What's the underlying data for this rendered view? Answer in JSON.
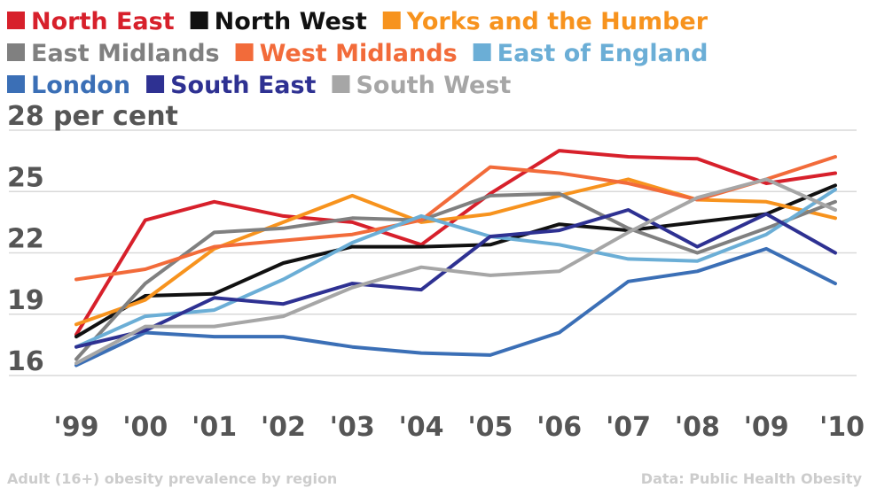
{
  "chart_data": {
    "type": "line",
    "ylabel": "per cent",
    "caption": "Adult (16+) obesity prevalence by region",
    "source": "Data: Public Health Obesity",
    "x": [
      "'99",
      "'00",
      "'01",
      "'02",
      "'03",
      "'04",
      "'05",
      "'06",
      "'07",
      "'08",
      "'09",
      "'10"
    ],
    "yticks": [
      16,
      19,
      22,
      25,
      28
    ],
    "ylim": [
      16,
      28
    ],
    "grid": true,
    "legend_position": "top",
    "series": [
      {
        "name": "North East",
        "color": "#d7202b",
        "values": [
          18.0,
          23.6,
          24.5,
          23.8,
          23.5,
          22.4,
          24.9,
          27.0,
          26.7,
          26.6,
          25.4,
          25.9
        ]
      },
      {
        "name": "North West",
        "color": "#111111",
        "values": [
          17.9,
          19.9,
          20.0,
          21.5,
          22.3,
          22.3,
          22.4,
          23.4,
          23.1,
          23.5,
          23.9,
          25.3
        ]
      },
      {
        "name": "Yorks and the Humber",
        "color": "#f7931e",
        "values": [
          18.5,
          19.7,
          22.2,
          23.5,
          24.8,
          23.5,
          23.9,
          24.8,
          25.6,
          24.6,
          24.5,
          23.7
        ]
      },
      {
        "name": "East Midlands",
        "color": "#808080",
        "values": [
          16.8,
          20.5,
          23.0,
          23.2,
          23.7,
          23.6,
          24.8,
          24.9,
          23.2,
          22.0,
          23.2,
          24.5
        ]
      },
      {
        "name": "West Midlands",
        "color": "#f26b3a",
        "values": [
          20.7,
          21.2,
          22.3,
          22.6,
          22.9,
          23.6,
          26.2,
          25.9,
          25.4,
          24.6,
          25.6,
          26.7
        ]
      },
      {
        "name": "East of England",
        "color": "#6baed6",
        "values": [
          17.4,
          18.9,
          19.2,
          20.7,
          22.5,
          23.8,
          22.8,
          22.4,
          21.7,
          21.6,
          22.9,
          25.1
        ]
      },
      {
        "name": "London",
        "color": "#3b6fb6",
        "values": [
          16.5,
          18.1,
          17.9,
          17.9,
          17.4,
          17.1,
          17.0,
          18.1,
          20.6,
          21.1,
          22.2,
          20.5
        ]
      },
      {
        "name": "South East",
        "color": "#2e3192",
        "values": [
          17.4,
          18.2,
          19.8,
          19.5,
          20.5,
          20.2,
          22.8,
          23.1,
          24.1,
          22.3,
          23.9,
          22.0
        ]
      },
      {
        "name": "South West",
        "color": "#a6a6a6",
        "values": [
          16.6,
          18.4,
          18.4,
          18.9,
          20.3,
          21.3,
          20.9,
          21.1,
          23.0,
          24.7,
          25.6,
          24.1
        ]
      }
    ]
  }
}
